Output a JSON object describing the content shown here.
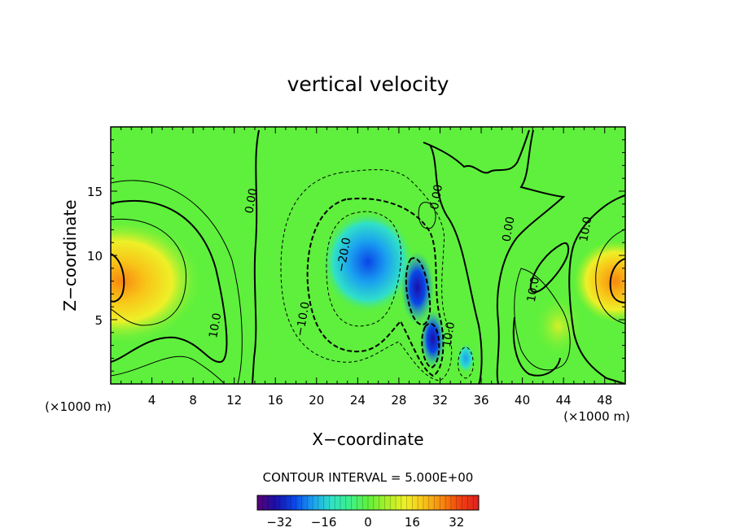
{
  "chart_data": {
    "type": "heatmap",
    "title": "vertical velocity",
    "xlabel": "X−coordinate",
    "ylabel": "Z−coordinate",
    "x_unit_label": "(×1000 m)",
    "z_unit_label": "(×1000 m)",
    "xlim": [
      0,
      50
    ],
    "ylim": [
      0,
      20
    ],
    "x_ticks": [
      4,
      8,
      12,
      16,
      20,
      24,
      28,
      32,
      36,
      40,
      44,
      48
    ],
    "y_ticks": [
      5,
      10,
      15
    ],
    "contour_interval_text": "CONTOUR INTERVAL = 5.000E+00",
    "contour_interval": 5,
    "contour_labels": [
      {
        "text": "0.00",
        "x": 14.0,
        "y": 14.2
      },
      {
        "text": "10.0",
        "x": 10.5,
        "y": 4.5
      },
      {
        "text": "−20.0",
        "x": 23.0,
        "y": 10.0
      },
      {
        "text": "−10.0",
        "x": 19.0,
        "y": 5.0
      },
      {
        "text": "0.00",
        "x": 32.0,
        "y": 14.5
      },
      {
        "text": "10.0",
        "x": 33.2,
        "y": 3.8
      },
      {
        "text": "0.00",
        "x": 39.0,
        "y": 12.0
      },
      {
        "text": "10.0",
        "x": 46.5,
        "y": 12.0
      },
      {
        "text": "10.0",
        "x": 41.4,
        "y": 7.3
      }
    ],
    "colorbar": {
      "range": [
        -40,
        40
      ],
      "ticks": [
        -32,
        -16,
        0,
        16,
        32
      ],
      "tick_labels": [
        "−32",
        "−16",
        "0",
        "16",
        "32"
      ],
      "colors": [
        "#5a0078",
        "#1a10a8",
        "#0a46e8",
        "#1aa0f0",
        "#30e0c8",
        "#3cf08a",
        "#5ef03c",
        "#a8f028",
        "#eef028",
        "#f8c418",
        "#f88810",
        "#f04010",
        "#e02020"
      ]
    },
    "field_features": [
      {
        "label": "updraft",
        "x": 1,
        "z": 8,
        "peak": 22,
        "rx": 8,
        "rz": 5
      },
      {
        "label": "downdraft",
        "x": 25,
        "z": 9.5,
        "peak": -22,
        "rx": 4.5,
        "rz": 4
      },
      {
        "label": "downdraft core",
        "x": 29.8,
        "z": 7.5,
        "peak": -32,
        "rx": 1.6,
        "rz": 2.8
      },
      {
        "label": "downdraft lower",
        "x": 31.3,
        "z": 3.5,
        "peak": -30,
        "rx": 1.2,
        "rz": 2.2
      },
      {
        "label": "updraft",
        "x": 49,
        "z": 8,
        "peak": 22,
        "rx": 4,
        "rz": 3.2
      },
      {
        "label": "updraft",
        "x": 43.5,
        "z": 4.5,
        "peak": 10,
        "rx": 2.5,
        "rz": 2.5
      },
      {
        "label": "downdraft",
        "x": 34.5,
        "z": 2,
        "peak": -15,
        "rx": 0.9,
        "rz": 1.2
      }
    ]
  }
}
